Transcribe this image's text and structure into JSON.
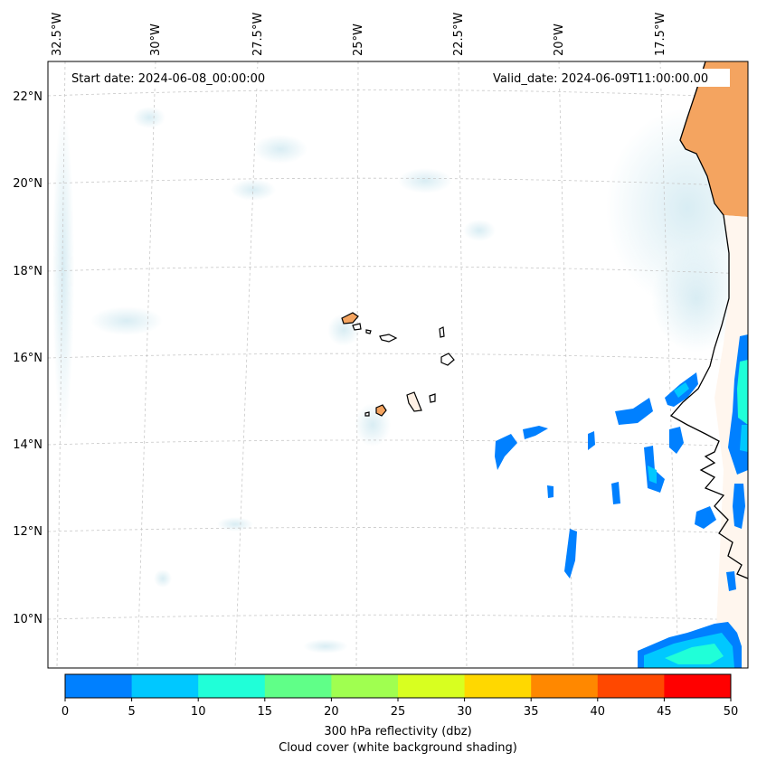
{
  "map": {
    "start_label": "Start date: 2024-06-08_00:00:00",
    "valid_label": "Valid_date: 2024-06-09T11:00:00.00",
    "lon_labels": [
      "32.5°W",
      "30°W",
      "27.5°W",
      "25°W",
      "22.5°W",
      "20°W",
      "17.5°W"
    ],
    "lat_labels": [
      "22°N",
      "20°N",
      "18°N",
      "16°N",
      "14°N",
      "12°N",
      "10°N"
    ],
    "colors": {
      "land": "#f4a460",
      "cloud": "#add8e6",
      "coast": "#000000",
      "grid": "#c8c8c8"
    }
  },
  "colorbar": {
    "ticks": [
      "0",
      "5",
      "10",
      "15",
      "20",
      "25",
      "30",
      "35",
      "40",
      "45",
      "50"
    ],
    "colors": [
      "#0080ff",
      "#00c8ff",
      "#20ffd8",
      "#60ff88",
      "#a0ff50",
      "#d8ff20",
      "#ffd800",
      "#ff8800",
      "#ff4800",
      "#ff0000"
    ],
    "label_line1": "300 hPa reflectivity (dbz)",
    "label_line2": "Cloud cover (white background shading)"
  }
}
